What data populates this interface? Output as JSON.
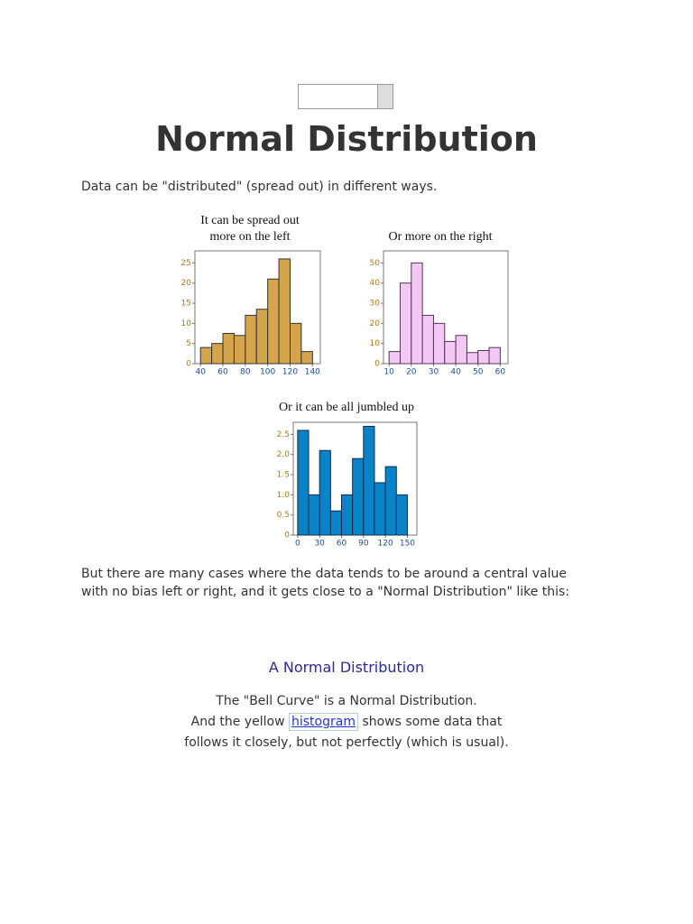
{
  "title": "Normal Distribution",
  "intro": "Data can be \"distributed\" (spread out) in different ways.",
  "chart_data": [
    {
      "type": "histogram",
      "title_lines": [
        "It can be spread out",
        "more on the left"
      ],
      "bins": [
        40,
        50,
        60,
        70,
        80,
        90,
        100,
        110,
        120,
        130,
        140
      ],
      "values": [
        4,
        5,
        7.5,
        7,
        12,
        13.5,
        21,
        26,
        10,
        3
      ],
      "color": "#d4a54c",
      "edge_color": "#333333",
      "xlim": [
        35,
        147
      ],
      "ylim": [
        0,
        28
      ],
      "xticks": [
        40,
        60,
        80,
        100,
        120,
        140
      ],
      "yticks": [
        0,
        5,
        10,
        15,
        20,
        25
      ]
    },
    {
      "type": "histogram",
      "title_lines": [
        "Or more on the right"
      ],
      "bins": [
        10,
        15,
        20,
        25,
        30,
        35,
        40,
        45,
        50,
        55,
        60
      ],
      "values": [
        6,
        40,
        50,
        24,
        20,
        11,
        14,
        5.5,
        6.5,
        8
      ],
      "color": "#f2c8f4",
      "edge_color": "#553355",
      "xlim": [
        7.5,
        63.5
      ],
      "ylim": [
        0,
        56
      ],
      "xticks": [
        10,
        20,
        30,
        40,
        50,
        60
      ],
      "yticks": [
        0,
        10,
        20,
        30,
        40,
        50
      ]
    },
    {
      "type": "histogram",
      "title_lines": [
        "Or it can be all jumbled up"
      ],
      "bins": [
        0,
        15,
        30,
        45,
        60,
        75,
        90,
        105,
        120,
        135,
        150
      ],
      "values": [
        2.6,
        1.0,
        2.1,
        0.6,
        1.0,
        1.9,
        2.7,
        1.3,
        1.7,
        1.0
      ],
      "color": "#0a82c8",
      "edge_color": "#10304a",
      "xlim": [
        -6,
        163
      ],
      "ylim": [
        0,
        2.8
      ],
      "xticks": [
        0,
        30,
        60,
        90,
        120,
        150
      ],
      "yticks": [
        0,
        0.5,
        {
          "value": 1,
          "label": "1.0"
        },
        1.5,
        {
          "value": 2,
          "label": "2.0"
        },
        2.5
      ]
    }
  ],
  "paragraph": [
    "But there are many cases where the data tends to be around a central value",
    "with no bias left or right, and it gets close to a \"Normal Distribution\" like this:"
  ],
  "section": {
    "heading": "A Normal Distribution",
    "line1": "The \"Bell Curve\" is a Normal Distribution.",
    "line2_before": "And the yellow",
    "link": "histogram",
    "line2_after": "shows some data that",
    "line3": "follows it closely, but not perfectly (which is usual)."
  }
}
